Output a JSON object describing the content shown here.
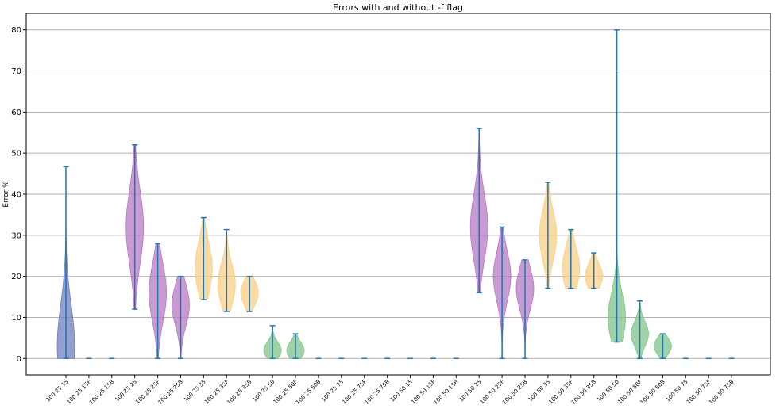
{
  "chart_data": {
    "type": "violin",
    "title": "Errors with and without -f flag",
    "xlabel": "",
    "ylabel": "Error %",
    "ylim": [
      -4,
      84
    ],
    "yticks": [
      0,
      10,
      20,
      30,
      40,
      50,
      60,
      70,
      80
    ],
    "grid": "horizontal",
    "colors": {
      "blue": "#6f7fbf",
      "purple": "#b679c4",
      "orange": "#f8cf87",
      "green": "#7fc48a",
      "whisker": "#1f77b4"
    },
    "categories": [
      {
        "label": "100 25 15",
        "min": 0,
        "max": 46.7,
        "median": 3,
        "spread": 10,
        "color": "blue"
      },
      {
        "label": "100 25 15F",
        "min": 0,
        "max": 0,
        "median": 0,
        "spread": 0,
        "color": "blue"
      },
      {
        "label": "100 25 15B",
        "min": 0,
        "max": 0,
        "median": 0,
        "spread": 0,
        "color": "blue"
      },
      {
        "label": "100 25 25",
        "min": 12,
        "max": 52,
        "median": 32,
        "spread": 9,
        "color": "purple"
      },
      {
        "label": "100 25 25F",
        "min": 0,
        "max": 28,
        "median": 16,
        "spread": 7,
        "color": "purple"
      },
      {
        "label": "100 25 25B",
        "min": 0,
        "max": 20,
        "median": 13,
        "spread": 5,
        "color": "purple"
      },
      {
        "label": "100 25 35",
        "min": 14.3,
        "max": 34.3,
        "median": 22,
        "spread": 6,
        "color": "orange"
      },
      {
        "label": "100 25 35F",
        "min": 11.4,
        "max": 31.4,
        "median": 18,
        "spread": 5,
        "color": "orange"
      },
      {
        "label": "100 25 35B",
        "min": 11.4,
        "max": 20,
        "median": 16,
        "spread": 3,
        "color": "orange"
      },
      {
        "label": "100 25 50",
        "min": 0,
        "max": 8,
        "median": 2,
        "spread": 2,
        "color": "green"
      },
      {
        "label": "100 25 50F",
        "min": 0,
        "max": 6,
        "median": 2,
        "spread": 2,
        "color": "green"
      },
      {
        "label": "100 25 50B",
        "min": 0,
        "max": 0,
        "median": 0,
        "spread": 0,
        "color": "green"
      },
      {
        "label": "100 25 75",
        "min": 0,
        "max": 0,
        "median": 0,
        "spread": 0,
        "color": "blue"
      },
      {
        "label": "100 25 75F",
        "min": 0,
        "max": 0,
        "median": 0,
        "spread": 0,
        "color": "blue"
      },
      {
        "label": "100 25 75B",
        "min": 0,
        "max": 0,
        "median": 0,
        "spread": 0,
        "color": "blue"
      },
      {
        "label": "100 50 15",
        "min": 0,
        "max": 0,
        "median": 0,
        "spread": 0,
        "color": "blue"
      },
      {
        "label": "100 50 15F",
        "min": 0,
        "max": 0,
        "median": 0,
        "spread": 0,
        "color": "blue"
      },
      {
        "label": "100 50 15B",
        "min": 0,
        "max": 0,
        "median": 0,
        "spread": 0,
        "color": "blue"
      },
      {
        "label": "100 50 25",
        "min": 16,
        "max": 56,
        "median": 32,
        "spread": 8,
        "color": "purple"
      },
      {
        "label": "100 50 25F",
        "min": 0,
        "max": 32,
        "median": 20,
        "spread": 6,
        "color": "purple"
      },
      {
        "label": "100 50 25B",
        "min": 0,
        "max": 24,
        "median": 17,
        "spread": 5,
        "color": "purple"
      },
      {
        "label": "100 50 35",
        "min": 17.1,
        "max": 42.9,
        "median": 30,
        "spread": 6,
        "color": "orange"
      },
      {
        "label": "100 50 35F",
        "min": 17.1,
        "max": 31.4,
        "median": 22,
        "spread": 5,
        "color": "orange"
      },
      {
        "label": "100 50 35B",
        "min": 17.1,
        "max": 25.7,
        "median": 20,
        "spread": 3,
        "color": "orange"
      },
      {
        "label": "100 50 50",
        "min": 4,
        "max": 80,
        "median": 10,
        "spread": 6,
        "color": "green"
      },
      {
        "label": "100 50 50F",
        "min": 0,
        "max": 14,
        "median": 6,
        "spread": 3,
        "color": "green"
      },
      {
        "label": "100 50 50B",
        "min": 0,
        "max": 6,
        "median": 3,
        "spread": 2,
        "color": "green"
      },
      {
        "label": "100 50 75",
        "min": 0,
        "max": 0,
        "median": 0,
        "spread": 0,
        "color": "blue"
      },
      {
        "label": "100 50 75F",
        "min": 0,
        "max": 0,
        "median": 0,
        "spread": 0,
        "color": "blue"
      },
      {
        "label": "100 50 75B",
        "min": 0,
        "max": 0,
        "median": 0,
        "spread": 0,
        "color": "blue"
      }
    ]
  }
}
